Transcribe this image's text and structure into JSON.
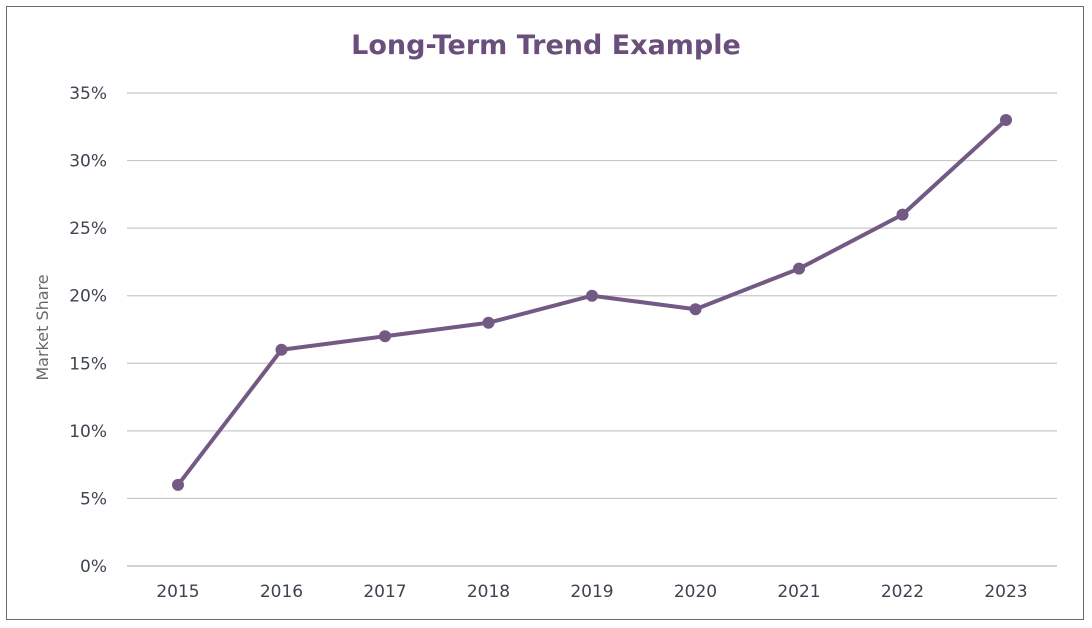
{
  "chart_data": {
    "type": "line",
    "title": "Long-Term Trend Example",
    "xlabel": "",
    "ylabel": "Market Share",
    "x": [
      "2015",
      "2016",
      "2017",
      "2018",
      "2019",
      "2020",
      "2021",
      "2022",
      "2023"
    ],
    "series": [
      {
        "values": [
          0.06,
          0.16,
          0.17,
          0.18,
          0.2,
          0.19,
          0.22,
          0.26,
          0.33
        ]
      }
    ],
    "ylim": [
      0,
      0.35
    ],
    "yticks": [
      0,
      0.05,
      0.1,
      0.15,
      0.2,
      0.25,
      0.3,
      0.35
    ],
    "ytick_labels": [
      "0%",
      "5%",
      "10%",
      "15%",
      "20%",
      "25%",
      "30%",
      "35%"
    ],
    "grid": "horizontal",
    "legend": "none",
    "colors": {
      "line": "#735a85",
      "marker": "#735a85",
      "title": "#6a4f7d",
      "gridline": "#c8c8c8",
      "tick_text": "#3d4450"
    }
  }
}
